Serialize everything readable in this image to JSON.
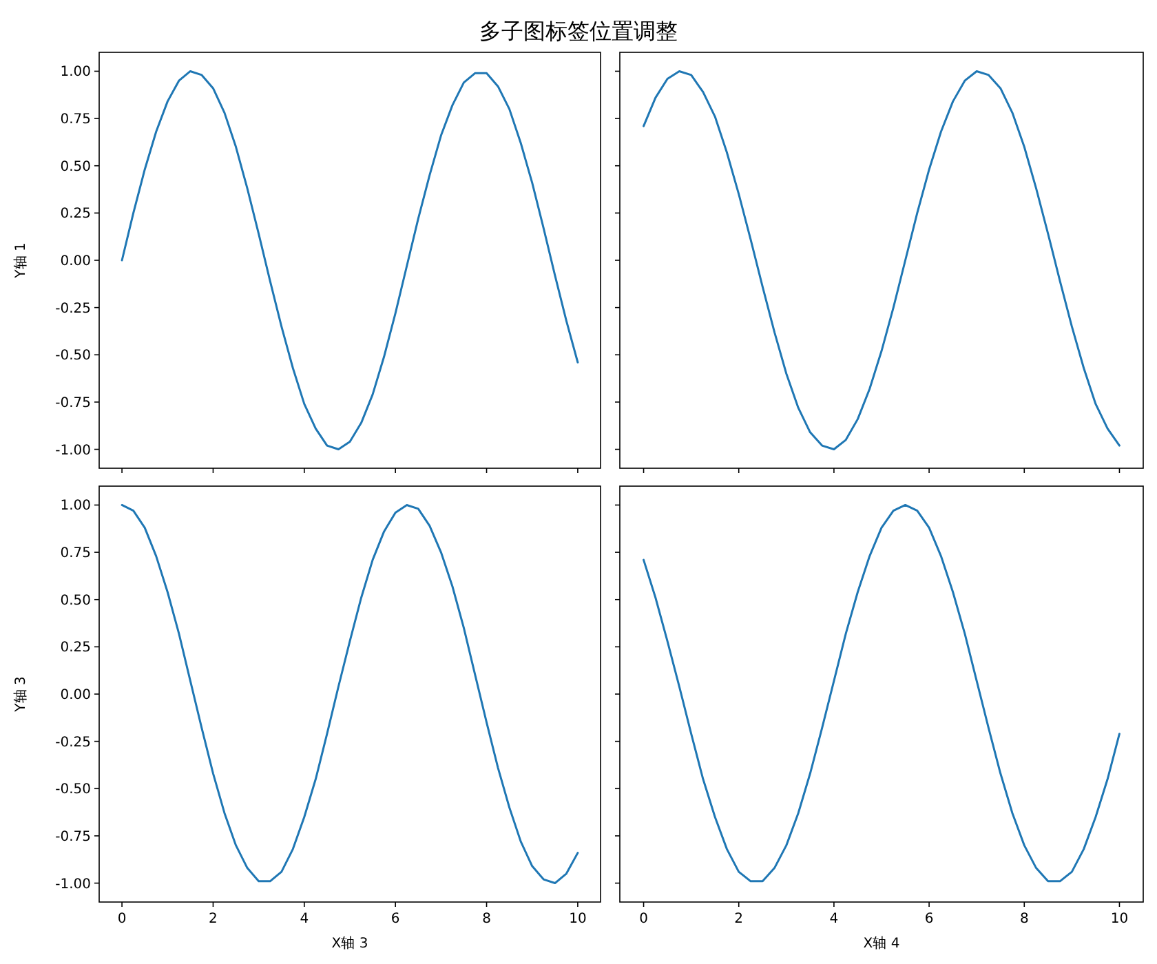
{
  "chart_data": [
    {
      "type": "line",
      "title": "多子图标签位置调整",
      "ylabel": "Y轴 1",
      "tick_labels": "y",
      "color": "#1f77b4",
      "x": [
        0,
        0.25,
        0.5,
        0.75,
        1,
        1.25,
        1.5,
        1.75,
        2,
        2.25,
        2.5,
        2.75,
        3,
        3.25,
        3.5,
        3.75,
        4,
        4.25,
        4.5,
        4.75,
        5,
        5.25,
        5.5,
        5.75,
        6,
        6.25,
        6.5,
        6.75,
        7,
        7.25,
        7.5,
        7.75,
        8,
        8.25,
        8.5,
        8.75,
        9,
        9.25,
        9.5,
        9.75,
        10
      ],
      "values": [
        0,
        0.25,
        0.48,
        0.68,
        0.84,
        0.95,
        1.0,
        0.98,
        0.91,
        0.78,
        0.6,
        0.38,
        0.14,
        -0.11,
        -0.35,
        -0.57,
        -0.76,
        -0.89,
        -0.98,
        -1.0,
        -0.96,
        -0.86,
        -0.71,
        -0.51,
        -0.28,
        -0.03,
        0.22,
        0.45,
        0.66,
        0.82,
        0.94,
        0.99,
        0.99,
        0.92,
        0.8,
        0.62,
        0.41,
        0.17,
        -0.08,
        -0.32,
        -0.54
      ],
      "xlim": [
        -0.5,
        10.5
      ],
      "ylim": [
        -1.1,
        1.1
      ],
      "xticks": [
        {
          "value": 0,
          "label": null
        },
        {
          "value": 2,
          "label": null
        },
        {
          "value": 4,
          "label": null
        },
        {
          "value": 6,
          "label": null
        },
        {
          "value": 8,
          "label": null
        },
        {
          "value": 10,
          "label": null
        }
      ],
      "yticks": [
        {
          "value": -1,
          "label": "-1.00"
        },
        {
          "value": -0.75,
          "label": "-0.75"
        },
        {
          "value": -0.5,
          "label": "-0.50"
        },
        {
          "value": -0.25,
          "label": "-0.25"
        },
        {
          "value": 0,
          "label": "0.00"
        },
        {
          "value": 0.25,
          "label": "0.25"
        },
        {
          "value": 0.5,
          "label": "0.50"
        },
        {
          "value": 0.75,
          "label": "0.75"
        },
        {
          "value": 1,
          "label": "1.00"
        }
      ]
    },
    {
      "type": "line",
      "tick_labels": false,
      "color": "#1f77b4",
      "x": [
        0,
        0.25,
        0.5,
        0.75,
        1,
        1.25,
        1.5,
        1.75,
        2,
        2.25,
        2.5,
        2.75,
        3,
        3.25,
        3.5,
        3.75,
        4,
        4.25,
        4.5,
        4.75,
        5,
        5.25,
        5.5,
        5.75,
        6,
        6.25,
        6.5,
        6.75,
        7,
        7.25,
        7.5,
        7.75,
        8,
        8.25,
        8.5,
        8.75,
        9,
        9.25,
        9.5,
        9.75,
        10
      ],
      "values": [
        0.71,
        0.86,
        0.96,
        1.0,
        0.98,
        0.89,
        0.76,
        0.57,
        0.35,
        0.11,
        -0.14,
        -0.38,
        -0.6,
        -0.78,
        -0.91,
        -0.98,
        -1.0,
        -0.95,
        -0.84,
        -0.68,
        -0.48,
        -0.25,
        0.0,
        0.25,
        0.48,
        0.68,
        0.84,
        0.95,
        1.0,
        0.98,
        0.91,
        0.78,
        0.6,
        0.38,
        0.14,
        -0.11,
        -0.35,
        -0.57,
        -0.76,
        -0.89,
        -0.98
      ],
      "xlim": [
        -0.5,
        10.5
      ],
      "ylim": [
        -1.1,
        1.1
      ],
      "xticks": [
        {
          "value": 0,
          "label": null
        },
        {
          "value": 2,
          "label": null
        },
        {
          "value": 4,
          "label": null
        },
        {
          "value": 6,
          "label": null
        },
        {
          "value": 8,
          "label": null
        },
        {
          "value": 10,
          "label": null
        }
      ],
      "yticks": [
        {
          "value": -1,
          "label": null
        },
        {
          "value": -0.75,
          "label": null
        },
        {
          "value": -0.5,
          "label": null
        },
        {
          "value": -0.25,
          "label": null
        },
        {
          "value": 0,
          "label": null
        },
        {
          "value": 0.25,
          "label": null
        },
        {
          "value": 0.5,
          "label": null
        },
        {
          "value": 0.75,
          "label": null
        },
        {
          "value": 1,
          "label": null
        }
      ]
    },
    {
      "type": "line",
      "xlabel": "X轴 3",
      "ylabel": "Y轴 3",
      "color": "#1f77b4",
      "x": [
        0,
        0.25,
        0.5,
        0.75,
        1,
        1.25,
        1.5,
        1.75,
        2,
        2.25,
        2.5,
        2.75,
        3,
        3.25,
        3.5,
        3.75,
        4,
        4.25,
        4.5,
        4.75,
        5,
        5.25,
        5.5,
        5.75,
        6,
        6.25,
        6.5,
        6.75,
        7,
        7.25,
        7.5,
        7.75,
        8,
        8.25,
        8.5,
        8.75,
        9,
        9.25,
        9.5,
        9.75,
        10
      ],
      "values": [
        1.0,
        0.97,
        0.88,
        0.73,
        0.54,
        0.32,
        0.07,
        -0.18,
        -0.42,
        -0.63,
        -0.8,
        -0.92,
        -0.99,
        -0.99,
        -0.94,
        -0.82,
        -0.65,
        -0.45,
        -0.21,
        0.04,
        0.28,
        0.51,
        0.71,
        0.86,
        0.96,
        1.0,
        0.98,
        0.89,
        0.75,
        0.57,
        0.35,
        0.1,
        -0.15,
        -0.39,
        -0.6,
        -0.78,
        -0.91,
        -0.98,
        -1.0,
        -0.95,
        -0.84
      ],
      "xlim": [
        -0.5,
        10.5
      ],
      "ylim": [
        -1.1,
        1.1
      ],
      "xticks": [
        0,
        2,
        4,
        6,
        8,
        10
      ],
      "yticks": [
        {
          "value": -1,
          "label": "-1.00"
        },
        {
          "value": -0.75,
          "label": "-0.75"
        },
        {
          "value": -0.5,
          "label": "-0.50"
        },
        {
          "value": -0.25,
          "label": "-0.25"
        },
        {
          "value": 0,
          "label": "0.00"
        },
        {
          "value": 0.25,
          "label": "0.25"
        },
        {
          "value": 0.5,
          "label": "0.50"
        },
        {
          "value": 0.75,
          "label": "0.75"
        },
        {
          "value": 1,
          "label": "1.00"
        }
      ]
    },
    {
      "type": "line",
      "xlabel": "X轴 4",
      "tick_labels": "x",
      "color": "#1f77b4",
      "x": [
        0,
        0.25,
        0.5,
        0.75,
        1,
        1.25,
        1.5,
        1.75,
        2,
        2.25,
        2.5,
        2.75,
        3,
        3.25,
        3.5,
        3.75,
        4,
        4.25,
        4.5,
        4.75,
        5,
        5.25,
        5.5,
        5.75,
        6,
        6.25,
        6.5,
        6.75,
        7,
        7.25,
        7.5,
        7.75,
        8,
        8.25,
        8.5,
        8.75,
        9,
        9.25,
        9.5,
        9.75,
        10
      ],
      "values": [
        0.71,
        0.51,
        0.28,
        0.04,
        -0.21,
        -0.45,
        -0.65,
        -0.82,
        -0.94,
        -0.99,
        -0.99,
        -0.92,
        -0.8,
        -0.63,
        -0.42,
        -0.18,
        0.07,
        0.32,
        0.54,
        0.73,
        0.88,
        0.97,
        1.0,
        0.97,
        0.88,
        0.73,
        0.54,
        0.32,
        0.07,
        -0.18,
        -0.42,
        -0.63,
        -0.8,
        -0.92,
        -0.99,
        -0.99,
        -0.94,
        -0.82,
        -0.65,
        -0.45,
        -0.21
      ],
      "xlim": [
        -0.5,
        10.5
      ],
      "ylim": [
        -1.1,
        1.1
      ],
      "xticks": [
        0,
        2,
        4,
        6,
        8,
        10
      ],
      "yticks": [
        {
          "value": -1,
          "label": null
        },
        {
          "value": -0.75,
          "label": null
        },
        {
          "value": -0.5,
          "label": null
        },
        {
          "value": -0.25,
          "label": null
        },
        {
          "value": 0,
          "label": null
        },
        {
          "value": 0.25,
          "label": null
        },
        {
          "value": 0.5,
          "label": null
        },
        {
          "value": 0.75,
          "label": null
        },
        {
          "value": 1,
          "label": null
        }
      ]
    }
  ]
}
